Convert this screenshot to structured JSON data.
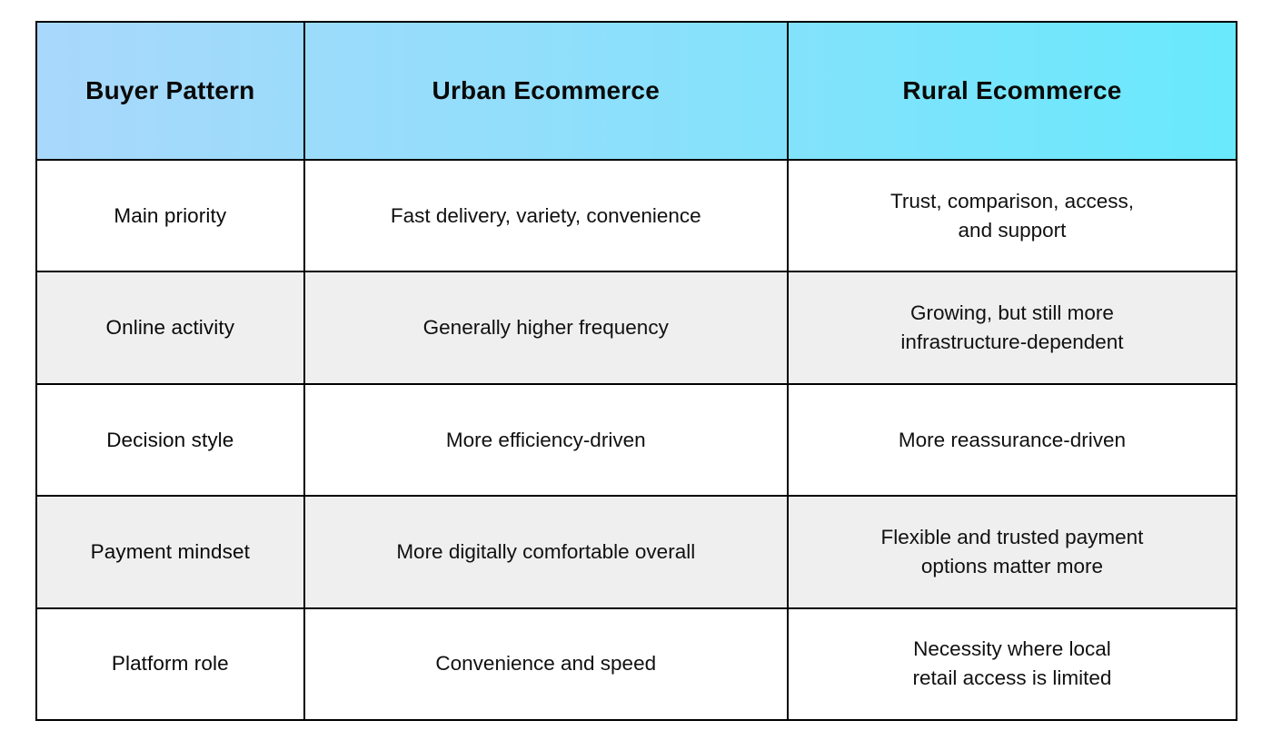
{
  "chart_data": {
    "type": "table",
    "title": "",
    "columns": [
      "Buyer Pattern",
      "Urban Ecommerce",
      "Rural Ecommerce"
    ],
    "rows": [
      [
        "Main priority",
        "Fast delivery, variety, convenience",
        "Trust, comparison, access,\nand support"
      ],
      [
        "Online activity",
        "Generally higher frequency",
        "Growing, but still more\ninfrastructure-dependent"
      ],
      [
        "Decision style",
        "More efficiency-driven",
        "More reassurance-driven"
      ],
      [
        "Payment mindset",
        "More digitally comfortable overall",
        "Flexible and trusted payment\noptions matter more"
      ],
      [
        "Platform role",
        "Convenience and speed",
        "Necessity where local\nretail access is limited"
      ]
    ],
    "layout": {
      "header_gradient_from": "#a9d8fb",
      "header_gradient_to": "#69e9fc",
      "alt_row_background": "#efefef",
      "row_background": "#ffffff",
      "border_color": "#000000",
      "text_color": "#111111",
      "grid": "on",
      "legend": "none"
    }
  }
}
